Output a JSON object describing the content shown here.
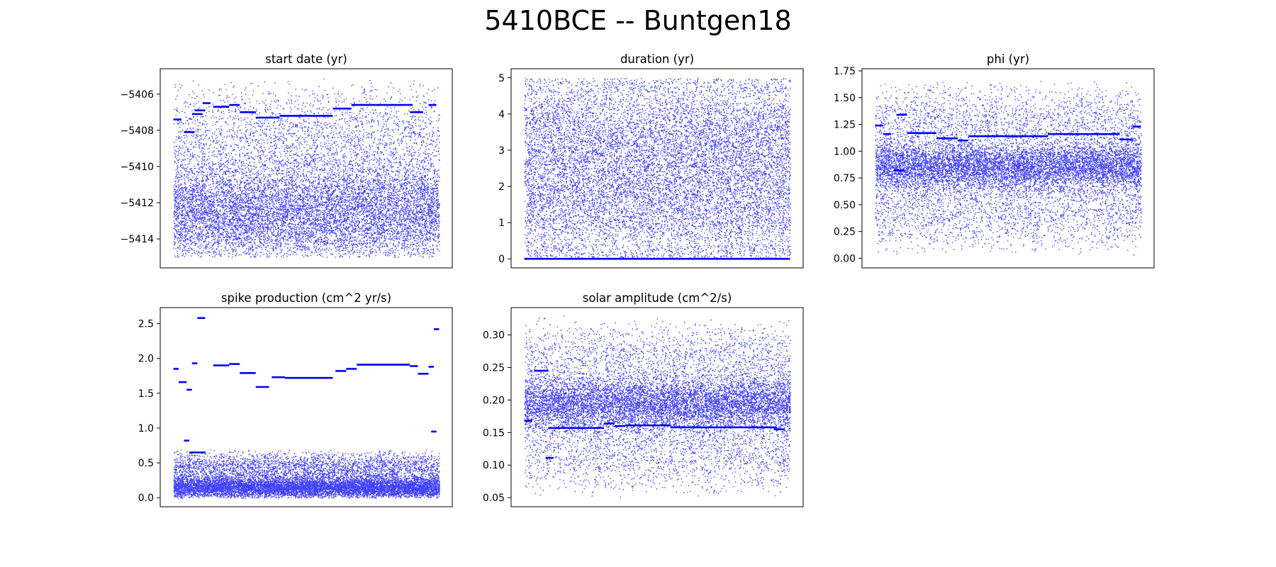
{
  "suptitle": "5410BCE -- Buntgen18",
  "point_color": "#0000ff",
  "chart_data": [
    {
      "type": "scatter",
      "title": "start date (yr)",
      "ylim": [
        -5415.6,
        -5404.6
      ],
      "yticks": [
        -5406,
        -5408,
        -5410,
        -5412,
        -5414
      ],
      "ytick_labels": [
        "−5406",
        "−5408",
        "−5410",
        "−5412",
        "−5414"
      ],
      "samples": 12000,
      "cloud": {
        "lo": -5415,
        "hi": -5405,
        "center": -5412.5,
        "spread": 2.6
      },
      "plateaus": [
        {
          "from": 0.0,
          "to": 0.03,
          "value": -5407.4
        },
        {
          "from": 0.04,
          "to": 0.08,
          "value": -5408.1
        },
        {
          "from": 0.07,
          "to": 0.11,
          "value": -5407.1
        },
        {
          "from": 0.08,
          "to": 0.12,
          "value": -5406.9
        },
        {
          "from": 0.11,
          "to": 0.14,
          "value": -5406.5
        },
        {
          "from": 0.15,
          "to": 0.21,
          "value": -5406.7
        },
        {
          "from": 0.21,
          "to": 0.25,
          "value": -5406.6
        },
        {
          "from": 0.25,
          "to": 0.31,
          "value": -5407.0
        },
        {
          "from": 0.31,
          "to": 0.4,
          "value": -5407.3
        },
        {
          "from": 0.4,
          "to": 0.6,
          "value": -5407.2
        },
        {
          "from": 0.6,
          "to": 0.67,
          "value": -5406.8
        },
        {
          "from": 0.67,
          "to": 0.9,
          "value": -5406.6
        },
        {
          "from": 0.89,
          "to": 0.94,
          "value": -5407.0
        },
        {
          "from": 0.96,
          "to": 0.99,
          "value": -5406.6
        }
      ]
    },
    {
      "type": "scatter",
      "title": "duration (yr)",
      "ylim": [
        -0.25,
        5.25
      ],
      "yticks": [
        0,
        1,
        2,
        3,
        4,
        5
      ],
      "ytick_labels": [
        "0",
        "1",
        "2",
        "3",
        "4",
        "5"
      ],
      "samples": 12000,
      "cloud": {
        "lo": 0,
        "hi": 5,
        "center": 2.5,
        "spread": 3.0
      },
      "plateaus": [
        {
          "from": 0.0,
          "to": 1.0,
          "value": 0.0
        }
      ]
    },
    {
      "type": "scatter",
      "title": "phi (yr)",
      "ylim": [
        -0.09,
        1.77
      ],
      "yticks": [
        0.0,
        0.25,
        0.5,
        0.75,
        1.0,
        1.25,
        1.5,
        1.75
      ],
      "ytick_labels": [
        "0.00",
        "0.25",
        "0.50",
        "0.75",
        "1.00",
        "1.25",
        "1.50",
        "1.75"
      ],
      "samples": 12000,
      "cloud": {
        "lo": 0.02,
        "hi": 1.68,
        "center": 0.86,
        "spread": 0.22
      },
      "plateaus": [
        {
          "from": 0.0,
          "to": 0.03,
          "value": 1.24
        },
        {
          "from": 0.03,
          "to": 0.06,
          "value": 1.16
        },
        {
          "from": 0.07,
          "to": 0.11,
          "value": 0.82
        },
        {
          "from": 0.08,
          "to": 0.12,
          "value": 1.34
        },
        {
          "from": 0.12,
          "to": 0.23,
          "value": 1.17
        },
        {
          "from": 0.23,
          "to": 0.31,
          "value": 1.12
        },
        {
          "from": 0.31,
          "to": 0.35,
          "value": 1.1
        },
        {
          "from": 0.35,
          "to": 0.65,
          "value": 1.14
        },
        {
          "from": 0.65,
          "to": 0.92,
          "value": 1.16
        },
        {
          "from": 0.92,
          "to": 0.97,
          "value": 1.11
        },
        {
          "from": 0.97,
          "to": 1.0,
          "value": 1.23
        }
      ]
    },
    {
      "type": "scatter",
      "title": "spike production (cm^2 yr/s)",
      "ylim": [
        -0.13,
        2.73
      ],
      "yticks": [
        0.0,
        0.5,
        1.0,
        1.5,
        2.0,
        2.5
      ],
      "ytick_labels": [
        "0.0",
        "0.5",
        "1.0",
        "1.5",
        "2.0",
        "2.5"
      ],
      "samples": 12000,
      "cloud": {
        "lo": 0.0,
        "hi": 0.7,
        "center": 0.15,
        "spread": 0.14
      },
      "plateaus": [
        {
          "from": 0.0,
          "to": 0.02,
          "value": 1.85
        },
        {
          "from": 0.02,
          "to": 0.05,
          "value": 1.66
        },
        {
          "from": 0.04,
          "to": 0.06,
          "value": 0.82
        },
        {
          "from": 0.05,
          "to": 0.07,
          "value": 1.55
        },
        {
          "from": 0.06,
          "to": 0.12,
          "value": 0.65
        },
        {
          "from": 0.07,
          "to": 0.09,
          "value": 1.93
        },
        {
          "from": 0.09,
          "to": 0.12,
          "value": 2.58
        },
        {
          "from": 0.15,
          "to": 0.21,
          "value": 1.9
        },
        {
          "from": 0.21,
          "to": 0.25,
          "value": 1.92
        },
        {
          "from": 0.25,
          "to": 0.31,
          "value": 1.79
        },
        {
          "from": 0.31,
          "to": 0.36,
          "value": 1.59
        },
        {
          "from": 0.37,
          "to": 0.42,
          "value": 1.73
        },
        {
          "from": 0.42,
          "to": 0.6,
          "value": 1.72
        },
        {
          "from": 0.61,
          "to": 0.65,
          "value": 1.82
        },
        {
          "from": 0.65,
          "to": 0.69,
          "value": 1.85
        },
        {
          "from": 0.69,
          "to": 0.89,
          "value": 1.91
        },
        {
          "from": 0.89,
          "to": 0.92,
          "value": 1.89
        },
        {
          "from": 0.92,
          "to": 0.96,
          "value": 1.78
        },
        {
          "from": 0.96,
          "to": 0.98,
          "value": 1.88
        },
        {
          "from": 0.97,
          "to": 0.99,
          "value": 0.95
        },
        {
          "from": 0.98,
          "to": 1.0,
          "value": 2.42
        }
      ]
    },
    {
      "type": "scatter",
      "title": "solar amplitude (cm^2/s)",
      "ylim": [
        0.036,
        0.342
      ],
      "yticks": [
        0.05,
        0.1,
        0.15,
        0.2,
        0.25,
        0.3
      ],
      "ytick_labels": [
        "0.05",
        "0.10",
        "0.15",
        "0.20",
        "0.25",
        "0.30"
      ],
      "samples": 12000,
      "cloud": {
        "lo": 0.05,
        "hi": 0.33,
        "center": 0.195,
        "spread": 0.04
      },
      "plateaus": [
        {
          "from": 0.0,
          "to": 0.03,
          "value": 0.168
        },
        {
          "from": 0.04,
          "to": 0.09,
          "value": 0.245
        },
        {
          "from": 0.08,
          "to": 0.11,
          "value": 0.111
        },
        {
          "from": 0.09,
          "to": 0.14,
          "value": 0.157
        },
        {
          "from": 0.14,
          "to": 0.3,
          "value": 0.157
        },
        {
          "from": 0.3,
          "to": 0.34,
          "value": 0.164
        },
        {
          "from": 0.34,
          "to": 0.38,
          "value": 0.16
        },
        {
          "from": 0.38,
          "to": 0.55,
          "value": 0.161
        },
        {
          "from": 0.55,
          "to": 0.95,
          "value": 0.158
        },
        {
          "from": 0.94,
          "to": 0.98,
          "value": 0.155
        }
      ]
    }
  ]
}
